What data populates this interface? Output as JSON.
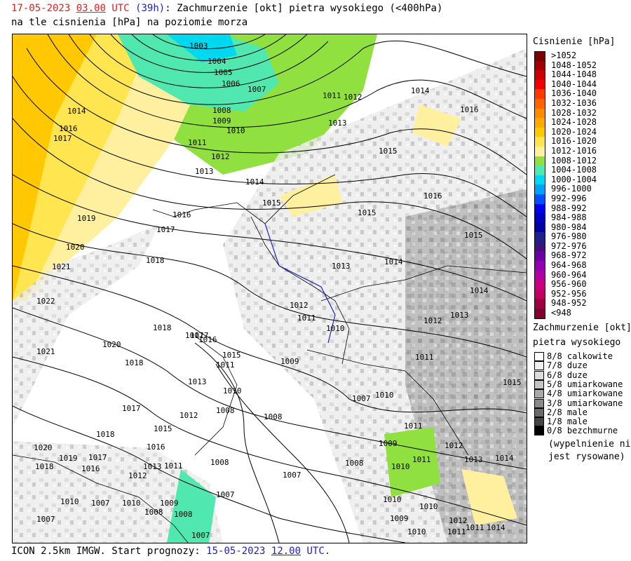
{
  "header": {
    "date": "17-05-2023",
    "time": "03.00",
    "utc": "UTC",
    "lead": "(39h)",
    "title_rest": ": Zachmurzenie [okt] pietra wysokiego (<400hPa)",
    "line2": "na tle cisnienia [hPa] na poziomie morza"
  },
  "footer": {
    "model": "ICON 2.5km IMGW. Start prognozy: ",
    "start_date": "15-05-2023",
    "start_time": "12.00",
    "utc": "UTC."
  },
  "pressure_legend": {
    "title": "Cisnienie [hPa]",
    "items": [
      {
        "label": ">1052",
        "color": "#7a0000"
      },
      {
        "label": "1048-1052",
        "color": "#a00000"
      },
      {
        "label": "1044-1048",
        "color": "#c80000"
      },
      {
        "label": "1040-1044",
        "color": "#f00000"
      },
      {
        "label": "1036-1040",
        "color": "#ff3a00"
      },
      {
        "label": "1032-1036",
        "color": "#ff6400"
      },
      {
        "label": "1028-1032",
        "color": "#ff8c00"
      },
      {
        "label": "1024-1028",
        "color": "#ffaa00"
      },
      {
        "label": "1020-1024",
        "color": "#ffc800"
      },
      {
        "label": "1016-1020",
        "color": "#ffe650"
      },
      {
        "label": "1012-1016",
        "color": "#fff0a0"
      },
      {
        "label": "1008-1012",
        "color": "#90e040"
      },
      {
        "label": "1004-1008",
        "color": "#50e8b0"
      },
      {
        "label": "1000-1004",
        "color": "#00d8f0"
      },
      {
        "label": "996-1000",
        "color": "#00a0ff"
      },
      {
        "label": "992-996",
        "color": "#0050ff"
      },
      {
        "label": "988-992",
        "color": "#0000f0"
      },
      {
        "label": "984-988",
        "color": "#0000c0"
      },
      {
        "label": "980-984",
        "color": "#0000a0"
      },
      {
        "label": "976-980",
        "color": "#20208a"
      },
      {
        "label": "972-976",
        "color": "#3c1478"
      },
      {
        "label": "968-972",
        "color": "#6a00a0"
      },
      {
        "label": "964-968",
        "color": "#9000b0"
      },
      {
        "label": "960-964",
        "color": "#b000a0"
      },
      {
        "label": "956-960",
        "color": "#c80080"
      },
      {
        "label": "952-956",
        "color": "#c00060"
      },
      {
        "label": "948-952",
        "color": "#a00040"
      },
      {
        "label": "<948",
        "color": "#800030"
      }
    ]
  },
  "cloud_legend": {
    "title_1": "Zachmurzenie [okt]",
    "title_2": "pietra wysokiego",
    "items": [
      {
        "label": "8/8 calkowite",
        "color": "#ffffff"
      },
      {
        "label": "7/8 duze",
        "color": "#f0f0f0"
      },
      {
        "label": "6/8 duze",
        "color": "#dcdcdc"
      },
      {
        "label": "5/8 umiarkowane",
        "color": "#c4c4c4"
      },
      {
        "label": "4/8 umiarkowane",
        "color": "#a8a8a8"
      },
      {
        "label": "3/8 umiarkowane",
        "color": "#8a8a8a"
      },
      {
        "label": "2/8 male",
        "color": "#6a6a6a"
      },
      {
        "label": "1/8 male",
        "color": "#444444"
      },
      {
        "label": "0/8 bezchmurne",
        "color": "#000000"
      }
    ],
    "note_1": "(wypelnienie nie",
    "note_2": "jest rysowane)"
  },
  "isobar_labels": [
    "1003",
    "1004",
    "1005",
    "1006",
    "1007",
    "1008",
    "1009",
    "1010",
    "1011",
    "1012",
    "1013",
    "1014",
    "1015",
    "1016",
    "1017",
    "1018",
    "1019",
    "1020",
    "1021",
    "1022"
  ]
}
